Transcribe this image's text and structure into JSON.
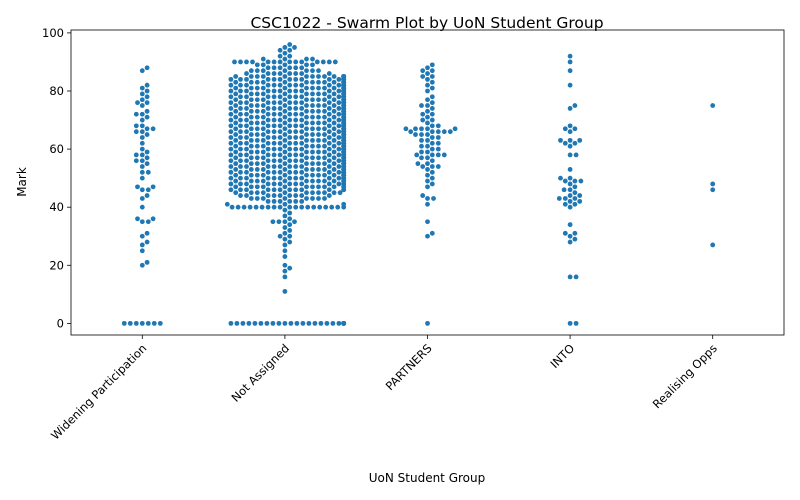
{
  "chart_data": {
    "type": "scatter",
    "subtype": "swarm",
    "title": "CSC1022 - Swarm Plot by UoN Student Group",
    "xlabel": "UoN Student Group",
    "ylabel": "Mark",
    "ylim": [
      -4,
      101
    ],
    "yticks": [
      0,
      20,
      40,
      60,
      80,
      100
    ],
    "grid": false,
    "legend": "none",
    "color": "#1f77b4",
    "categories": [
      "Widening Participation",
      "Not Assigned",
      "PARTNERS",
      "INTO",
      "Realising Opps"
    ],
    "series": [
      {
        "category": "Widening Participation",
        "values": [
          0,
          0,
          0,
          0,
          0,
          0,
          0,
          20,
          21,
          25,
          27,
          28,
          30,
          31,
          35,
          35,
          36,
          36,
          40,
          43,
          44,
          46,
          46,
          47,
          47,
          50,
          52,
          52,
          54,
          55,
          56,
          56,
          57,
          58,
          58,
          59,
          60,
          62,
          64,
          65,
          66,
          66,
          67,
          67,
          68,
          68,
          70,
          71,
          72,
          72,
          73,
          75,
          76,
          76,
          77,
          78,
          79,
          80,
          81,
          82,
          87,
          88
        ]
      },
      {
        "category": "Not Assigned",
        "values": [
          0,
          0,
          0,
          0,
          0,
          0,
          0,
          0,
          0,
          0,
          0,
          0,
          0,
          0,
          0,
          0,
          0,
          0,
          0,
          0,
          0,
          0,
          0,
          0,
          0,
          11,
          16,
          18,
          19,
          20,
          23,
          25,
          27,
          28,
          29,
          30,
          30,
          31,
          32,
          33,
          34,
          35,
          35,
          35,
          35,
          36,
          37,
          38,
          39,
          40,
          40,
          40,
          40,
          40,
          40,
          40,
          40,
          40,
          40,
          40,
          40,
          40,
          40,
          40,
          40,
          40,
          40,
          40,
          41,
          41,
          41,
          42,
          42,
          42,
          42,
          42,
          42,
          43,
          43,
          43,
          43,
          43,
          43,
          43,
          43,
          44,
          44,
          44,
          44,
          44,
          44,
          44,
          44,
          44,
          45,
          45,
          45,
          45,
          45,
          45,
          45,
          45,
          45,
          45,
          45,
          46,
          46,
          46,
          46,
          46,
          46,
          46,
          46,
          46,
          46,
          46,
          46,
          47,
          47,
          47,
          47,
          47,
          47,
          47,
          47,
          47,
          47,
          47,
          47,
          48,
          48,
          48,
          48,
          48,
          48,
          48,
          48,
          48,
          48,
          48,
          48,
          48,
          49,
          49,
          49,
          49,
          49,
          49,
          49,
          49,
          49,
          49,
          49,
          49,
          49,
          49,
          50,
          50,
          50,
          50,
          50,
          50,
          50,
          50,
          50,
          50,
          50,
          50,
          50,
          50,
          50,
          50,
          51,
          51,
          51,
          51,
          51,
          51,
          51,
          51,
          51,
          51,
          51,
          51,
          51,
          51,
          51,
          52,
          52,
          52,
          52,
          52,
          52,
          52,
          52,
          52,
          52,
          52,
          52,
          52,
          52,
          52,
          52,
          53,
          53,
          53,
          53,
          53,
          53,
          53,
          53,
          53,
          53,
          53,
          53,
          53,
          53,
          53,
          53,
          54,
          54,
          54,
          54,
          54,
          54,
          54,
          54,
          54,
          54,
          54,
          54,
          54,
          54,
          54,
          54,
          55,
          55,
          55,
          55,
          55,
          55,
          55,
          55,
          55,
          55,
          55,
          55,
          55,
          55,
          55,
          55,
          56,
          56,
          56,
          56,
          56,
          56,
          56,
          56,
          56,
          56,
          56,
          56,
          56,
          56,
          56,
          56,
          57,
          57,
          57,
          57,
          57,
          57,
          57,
          57,
          57,
          57,
          57,
          57,
          57,
          57,
          57,
          57,
          58,
          58,
          58,
          58,
          58,
          58,
          58,
          58,
          58,
          58,
          58,
          58,
          58,
          58,
          58,
          58,
          59,
          59,
          59,
          59,
          59,
          59,
          59,
          59,
          59,
          59,
          59,
          59,
          59,
          59,
          59,
          59,
          60,
          60,
          60,
          60,
          60,
          60,
          60,
          60,
          60,
          60,
          60,
          60,
          60,
          60,
          60,
          60,
          61,
          61,
          61,
          61,
          61,
          61,
          61,
          61,
          61,
          61,
          61,
          61,
          61,
          61,
          61,
          61,
          62,
          62,
          62,
          62,
          62,
          62,
          62,
          62,
          62,
          62,
          62,
          62,
          62,
          62,
          62,
          62,
          63,
          63,
          63,
          63,
          63,
          63,
          63,
          63,
          63,
          63,
          63,
          63,
          63,
          63,
          63,
          63,
          64,
          64,
          64,
          64,
          64,
          64,
          64,
          64,
          64,
          64,
          64,
          64,
          64,
          64,
          64,
          64,
          65,
          65,
          65,
          65,
          65,
          65,
          65,
          65,
          65,
          65,
          65,
          65,
          65,
          65,
          65,
          65,
          66,
          66,
          66,
          66,
          66,
          66,
          66,
          66,
          66,
          66,
          66,
          66,
          66,
          66,
          66,
          66,
          67,
          67,
          67,
          67,
          67,
          67,
          67,
          67,
          67,
          67,
          67,
          67,
          67,
          67,
          67,
          67,
          68,
          68,
          68,
          68,
          68,
          68,
          68,
          68,
          68,
          68,
          68,
          68,
          68,
          68,
          68,
          68,
          69,
          69,
          69,
          69,
          69,
          69,
          69,
          69,
          69,
          69,
          69,
          69,
          69,
          69,
          69,
          69,
          70,
          70,
          70,
          70,
          70,
          70,
          70,
          70,
          70,
          70,
          70,
          70,
          70,
          70,
          70,
          70,
          71,
          71,
          71,
          71,
          71,
          71,
          71,
          71,
          71,
          71,
          71,
          71,
          71,
          71,
          71,
          71,
          72,
          72,
          72,
          72,
          72,
          72,
          72,
          72,
          72,
          72,
          72,
          72,
          72,
          72,
          72,
          72,
          73,
          73,
          73,
          73,
          73,
          73,
          73,
          73,
          73,
          73,
          73,
          73,
          73,
          73,
          73,
          73,
          74,
          74,
          74,
          74,
          74,
          74,
          74,
          74,
          74,
          74,
          74,
          74,
          74,
          74,
          74,
          74,
          75,
          75,
          75,
          75,
          75,
          75,
          75,
          75,
          75,
          75,
          75,
          75,
          75,
          75,
          75,
          75,
          76,
          76,
          76,
          76,
          76,
          76,
          76,
          76,
          76,
          76,
          76,
          76,
          76,
          76,
          76,
          76,
          77,
          77,
          77,
          77,
          77,
          77,
          77,
          77,
          77,
          77,
          77,
          77,
          77,
          77,
          77,
          77,
          78,
          78,
          78,
          78,
          78,
          78,
          78,
          78,
          78,
          78,
          78,
          78,
          78,
          78,
          78,
          78,
          79,
          79,
          79,
          79,
          79,
          79,
          79,
          79,
          79,
          79,
          79,
          79,
          79,
          79,
          79,
          79,
          80,
          80,
          80,
          80,
          80,
          80,
          80,
          80,
          80,
          80,
          80,
          80,
          80,
          80,
          80,
          80,
          81,
          81,
          81,
          81,
          81,
          81,
          81,
          81,
          81,
          81,
          81,
          81,
          81,
          81,
          81,
          81,
          82,
          82,
          82,
          82,
          82,
          82,
          82,
          82,
          82,
          82,
          82,
          82,
          82,
          82,
          82,
          82,
          83,
          83,
          83,
          83,
          83,
          83,
          83,
          83,
          83,
          83,
          83,
          83,
          83,
          83,
          83,
          83,
          84,
          84,
          84,
          84,
          84,
          84,
          84,
          84,
          84,
          84,
          84,
          84,
          84,
          84,
          84,
          84,
          85,
          85,
          85,
          85,
          85,
          85,
          85,
          85,
          85,
          85,
          85,
          85,
          85,
          85,
          85,
          85,
          86,
          86,
          86,
          86,
          86,
          86,
          86,
          86,
          87,
          87,
          87,
          87,
          87,
          87,
          87,
          88,
          88,
          88,
          88,
          88,
          88,
          89,
          89,
          89,
          89,
          89,
          90,
          90,
          90,
          90,
          90,
          90,
          90,
          90,
          90,
          90,
          90,
          90,
          90,
          90,
          91,
          91,
          91,
          91,
          92,
          92,
          93,
          94,
          94,
          95,
          95,
          96
        ]
      },
      {
        "category": "PARTNERS",
        "values": [
          0,
          30,
          31,
          35,
          41,
          43,
          43,
          44,
          47,
          48,
          49,
          50,
          51,
          52,
          53,
          54,
          54,
          54,
          55,
          55,
          56,
          57,
          57,
          58,
          58,
          58,
          58,
          59,
          59,
          60,
          60,
          61,
          61,
          62,
          62,
          63,
          63,
          64,
          64,
          65,
          65,
          65,
          66,
          66,
          66,
          66,
          66,
          67,
          67,
          67,
          67,
          67,
          68,
          68,
          69,
          70,
          70,
          71,
          72,
          72,
          73,
          74,
          75,
          75,
          76,
          77,
          78,
          80,
          81,
          82,
          83,
          84,
          85,
          85,
          86,
          87,
          87,
          88,
          89
        ]
      },
      {
        "category": "INTO",
        "values": [
          0,
          0,
          16,
          16,
          28,
          29,
          30,
          31,
          31,
          34,
          40,
          41,
          41,
          42,
          42,
          43,
          43,
          43,
          44,
          44,
          45,
          46,
          46,
          47,
          48,
          49,
          49,
          49,
          50,
          50,
          53,
          58,
          58,
          61,
          62,
          62,
          63,
          63,
          63,
          66,
          67,
          67,
          68,
          74,
          75,
          82,
          87,
          90,
          92
        ]
      },
      {
        "category": "Realising Opps",
        "values": [
          27,
          46,
          48,
          75
        ]
      }
    ]
  }
}
